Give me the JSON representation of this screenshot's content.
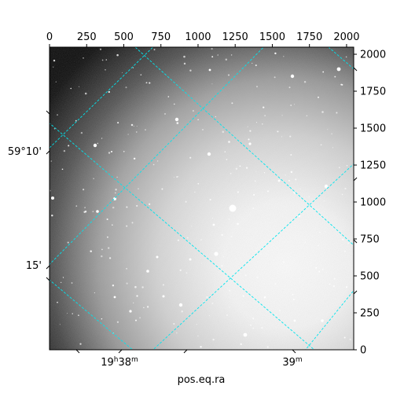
{
  "chart_data": {
    "type": "heatmap",
    "image_description_colormap": "gray",
    "pixel_axes": {
      "x_ticks": [
        0,
        250,
        500,
        750,
        1000,
        1250,
        1500,
        1750,
        2000
      ],
      "y_ticks": [
        0,
        250,
        500,
        750,
        1000,
        1250,
        1500,
        1750,
        2000
      ],
      "xlim": [
        0,
        2048
      ],
      "ylim": [
        0,
        2048
      ]
    },
    "world_axes": {
      "ra_ticks": [
        {
          "main": "19",
          "sup1": "h",
          "mid": "38",
          "sup2": "m"
        },
        {
          "main": "",
          "sup1": "",
          "mid": "39",
          "sup2": "m"
        }
      ],
      "dec_ticks": [
        "59°10'",
        "15'"
      ],
      "xlabel": "pos.eq.ra"
    },
    "grid": true,
    "grid_color": "#00e5ee",
    "frame_color": "#000000"
  }
}
